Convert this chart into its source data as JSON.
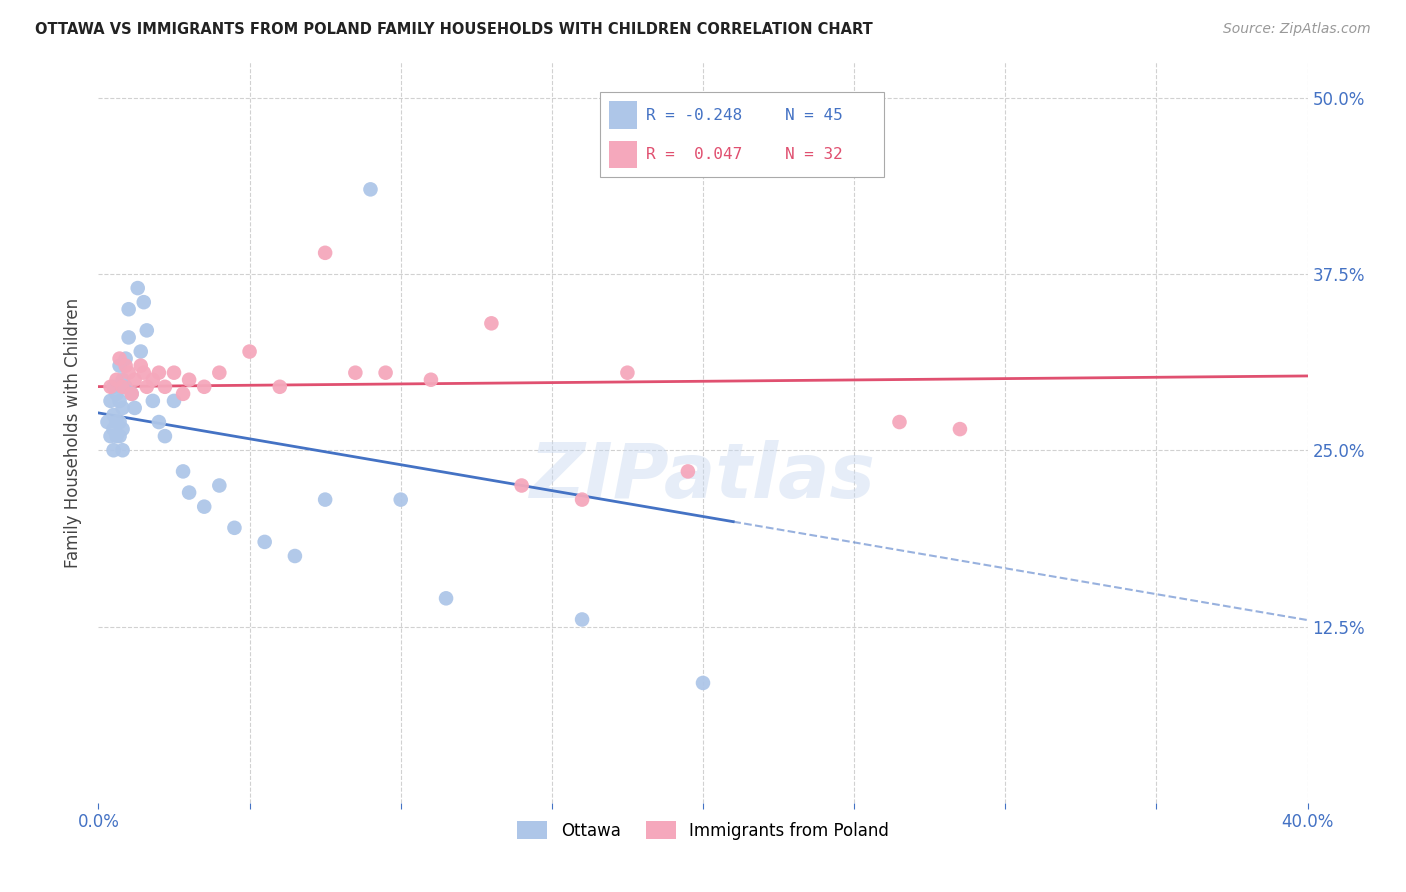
{
  "title": "OTTAWA VS IMMIGRANTS FROM POLAND FAMILY HOUSEHOLDS WITH CHILDREN CORRELATION CHART",
  "source": "Source: ZipAtlas.com",
  "ylabel": "Family Households with Children",
  "xlim": [
    0.0,
    0.4
  ],
  "ylim": [
    0.0,
    0.525
  ],
  "yticks": [
    0.125,
    0.25,
    0.375,
    0.5
  ],
  "ytick_labels": [
    "12.5%",
    "25.0%",
    "37.5%",
    "50.0%"
  ],
  "xticks": [
    0.0,
    0.05,
    0.1,
    0.15,
    0.2,
    0.25,
    0.3,
    0.35,
    0.4
  ],
  "xtick_labels": [
    "0.0%",
    "",
    "",
    "",
    "",
    "",
    "",
    "",
    "40.0%"
  ],
  "ottawa_color": "#aec6e8",
  "poland_color": "#f5a8bc",
  "line_ottawa_color": "#4472c4",
  "line_poland_color": "#e05070",
  "watermark": "ZIPatlas",
  "legend_R_ottawa": "R = -0.248",
  "legend_N_ottawa": "N = 45",
  "legend_R_poland": "R =  0.047",
  "legend_N_poland": "N = 32",
  "ottawa_x": [
    0.003,
    0.004,
    0.004,
    0.005,
    0.005,
    0.005,
    0.005,
    0.006,
    0.006,
    0.006,
    0.007,
    0.007,
    0.007,
    0.007,
    0.008,
    0.008,
    0.008,
    0.008,
    0.009,
    0.009,
    0.01,
    0.01,
    0.011,
    0.012,
    0.013,
    0.014,
    0.015,
    0.016,
    0.018,
    0.02,
    0.022,
    0.025,
    0.028,
    0.03,
    0.035,
    0.04,
    0.045,
    0.055,
    0.065,
    0.075,
    0.09,
    0.1,
    0.115,
    0.16,
    0.2
  ],
  "ottawa_y": [
    0.27,
    0.26,
    0.285,
    0.295,
    0.275,
    0.265,
    0.25,
    0.29,
    0.27,
    0.26,
    0.31,
    0.285,
    0.27,
    0.26,
    0.3,
    0.28,
    0.265,
    0.25,
    0.315,
    0.295,
    0.35,
    0.33,
    0.29,
    0.28,
    0.365,
    0.32,
    0.355,
    0.335,
    0.285,
    0.27,
    0.26,
    0.285,
    0.235,
    0.22,
    0.21,
    0.225,
    0.195,
    0.185,
    0.175,
    0.215,
    0.435,
    0.215,
    0.145,
    0.13,
    0.085
  ],
  "poland_x": [
    0.004,
    0.006,
    0.007,
    0.008,
    0.009,
    0.01,
    0.011,
    0.012,
    0.014,
    0.015,
    0.016,
    0.018,
    0.02,
    0.022,
    0.025,
    0.028,
    0.03,
    0.035,
    0.04,
    0.05,
    0.06,
    0.075,
    0.085,
    0.095,
    0.11,
    0.13,
    0.14,
    0.16,
    0.175,
    0.195,
    0.265,
    0.285
  ],
  "poland_y": [
    0.295,
    0.3,
    0.315,
    0.295,
    0.31,
    0.305,
    0.29,
    0.3,
    0.31,
    0.305,
    0.295,
    0.3,
    0.305,
    0.295,
    0.305,
    0.29,
    0.3,
    0.295,
    0.305,
    0.32,
    0.295,
    0.39,
    0.305,
    0.305,
    0.3,
    0.34,
    0.225,
    0.215,
    0.305,
    0.235,
    0.27,
    0.265
  ],
  "line_ottawa_solid_end": 0.21,
  "line_ottawa_dashed_end": 0.4,
  "title_fontsize": 10.5,
  "source_fontsize": 10,
  "tick_fontsize": 12,
  "ylabel_fontsize": 12,
  "watermark_fontsize": 55,
  "watermark_color": "#c8d8f0",
  "watermark_alpha": 0.45
}
